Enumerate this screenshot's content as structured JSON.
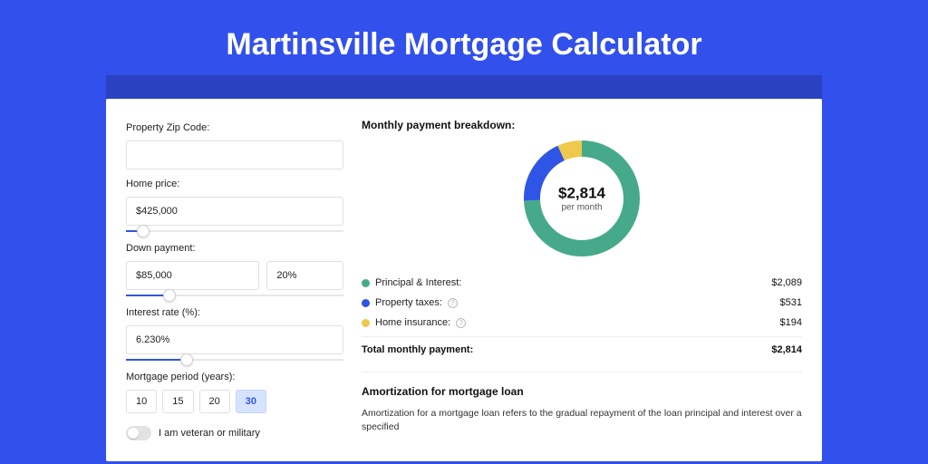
{
  "page": {
    "title": "Martinsville Mortgage Calculator",
    "bg_color": "#3150ec",
    "bar_color": "#2a42c2",
    "card_bg": "#ffffff"
  },
  "form": {
    "zip": {
      "label": "Property Zip Code:",
      "value": ""
    },
    "home_price": {
      "label": "Home price:",
      "value": "$425,000",
      "slider_percent": 8
    },
    "down_payment": {
      "label": "Down payment:",
      "amount": "$85,000",
      "percent": "20%",
      "slider_percent": 20
    },
    "interest_rate": {
      "label": "Interest rate (%):",
      "value": "6.230%",
      "slider_percent": 28
    },
    "mortgage_period": {
      "label": "Mortgage period (years):",
      "options": [
        "10",
        "15",
        "20",
        "30"
      ],
      "selected": "30"
    },
    "veteran": {
      "label": "I am veteran or military",
      "checked": false
    }
  },
  "breakdown": {
    "title": "Monthly payment breakdown:",
    "center_amount": "$2,814",
    "center_sub": "per month",
    "donut": {
      "size": 128,
      "thickness": 18,
      "slices": [
        {
          "key": "principal_interest",
          "fraction": 0.743,
          "color": "#46aa8a"
        },
        {
          "key": "property_taxes",
          "fraction": 0.188,
          "color": "#2f55e6"
        },
        {
          "key": "home_insurance",
          "fraction": 0.069,
          "color": "#efc94c"
        }
      ]
    },
    "items": [
      {
        "label": "Principal & Interest:",
        "value": "$2,089",
        "color": "#46aa8a",
        "info": false
      },
      {
        "label": "Property taxes:",
        "value": "$531",
        "color": "#2f55e6",
        "info": true
      },
      {
        "label": "Home insurance:",
        "value": "$194",
        "color": "#efc94c",
        "info": true
      }
    ],
    "total": {
      "label": "Total monthly payment:",
      "value": "$2,814"
    }
  },
  "amortization": {
    "title": "Amortization for mortgage loan",
    "body": "Amortization for a mortgage loan refers to the gradual repayment of the loan principal and interest over a specified"
  }
}
